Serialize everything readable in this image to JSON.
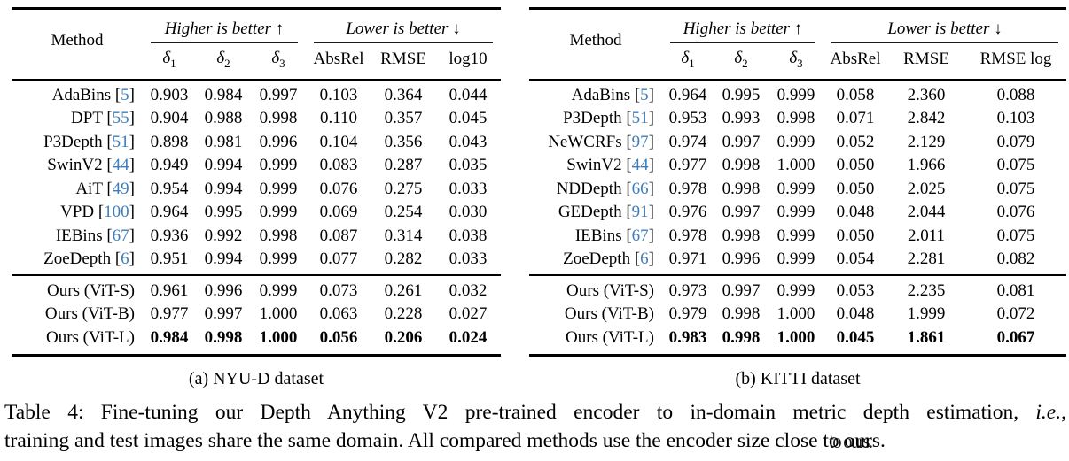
{
  "colors": {
    "cite_blue": "#3c7dbe",
    "text": "#000000",
    "rule": "#000000",
    "background": "#ffffff"
  },
  "tables": [
    {
      "id": "nyud",
      "subcaption": "(a) NYU-D dataset",
      "method_header": "Method",
      "groups": [
        {
          "label": "Higher is better",
          "arrow": "↑"
        },
        {
          "label": "Lower is better",
          "arrow": "↓"
        }
      ],
      "columns": [
        {
          "base": "δ",
          "sub": "1",
          "italic": true
        },
        {
          "base": "δ",
          "sub": "2",
          "italic": true
        },
        {
          "base": "δ",
          "sub": "3",
          "italic": true
        },
        {
          "base": "AbsRel"
        },
        {
          "base": "RMSE"
        },
        {
          "base": "log10"
        }
      ],
      "rows": [
        {
          "method": "AdaBins",
          "cite": "5",
          "values": [
            "0.903",
            "0.984",
            "0.997",
            "0.103",
            "0.364",
            "0.044"
          ]
        },
        {
          "method": "DPT",
          "cite": "55",
          "values": [
            "0.904",
            "0.988",
            "0.998",
            "0.110",
            "0.357",
            "0.045"
          ]
        },
        {
          "method": "P3Depth",
          "cite": "51",
          "values": [
            "0.898",
            "0.981",
            "0.996",
            "0.104",
            "0.356",
            "0.043"
          ]
        },
        {
          "method": "SwinV2",
          "cite": "44",
          "values": [
            "0.949",
            "0.994",
            "0.999",
            "0.083",
            "0.287",
            "0.035"
          ]
        },
        {
          "method": "AiT",
          "cite": "49",
          "values": [
            "0.954",
            "0.994",
            "0.999",
            "0.076",
            "0.275",
            "0.033"
          ]
        },
        {
          "method": "VPD",
          "cite": "100",
          "values": [
            "0.964",
            "0.995",
            "0.999",
            "0.069",
            "0.254",
            "0.030"
          ]
        },
        {
          "method": "IEBins",
          "cite": "67",
          "values": [
            "0.936",
            "0.992",
            "0.998",
            "0.087",
            "0.314",
            "0.038"
          ]
        },
        {
          "method": "ZoeDepth",
          "cite": "6",
          "values": [
            "0.951",
            "0.994",
            "0.999",
            "0.077",
            "0.282",
            "0.033"
          ]
        }
      ],
      "ours_rows": [
        {
          "method": "Ours (ViT-S)",
          "values": [
            "0.961",
            "0.996",
            "0.999",
            "0.073",
            "0.261",
            "0.032"
          ]
        },
        {
          "method": "Ours (ViT-B)",
          "values": [
            "0.977",
            "0.997",
            "1.000",
            "0.063",
            "0.228",
            "0.027"
          ]
        },
        {
          "method": "Ours (ViT-L)",
          "values": [
            "0.984",
            "0.998",
            "1.000",
            "0.056",
            "0.206",
            "0.024"
          ],
          "bold": true
        }
      ]
    },
    {
      "id": "kitti",
      "subcaption": "(b) KITTI dataset",
      "method_header": "Method",
      "groups": [
        {
          "label": "Higher is better",
          "arrow": "↑"
        },
        {
          "label": "Lower is better",
          "arrow": "↓"
        }
      ],
      "columns": [
        {
          "base": "δ",
          "sub": "1",
          "italic": true
        },
        {
          "base": "δ",
          "sub": "2",
          "italic": true
        },
        {
          "base": "δ",
          "sub": "3",
          "italic": true
        },
        {
          "base": "AbsRel"
        },
        {
          "base": "RMSE"
        },
        {
          "base": "RMSE log"
        }
      ],
      "rows": [
        {
          "method": "AdaBins",
          "cite": "5",
          "values": [
            "0.964",
            "0.995",
            "0.999",
            "0.058",
            "2.360",
            "0.088"
          ]
        },
        {
          "method": "P3Depth",
          "cite": "51",
          "values": [
            "0.953",
            "0.993",
            "0.998",
            "0.071",
            "2.842",
            "0.103"
          ]
        },
        {
          "method": "NeWCRFs",
          "cite": "97",
          "values": [
            "0.974",
            "0.997",
            "0.999",
            "0.052",
            "2.129",
            "0.079"
          ]
        },
        {
          "method": "SwinV2",
          "cite": "44",
          "values": [
            "0.977",
            "0.998",
            "1.000",
            "0.050",
            "1.966",
            "0.075"
          ]
        },
        {
          "method": "NDDepth",
          "cite": "66",
          "values": [
            "0.978",
            "0.998",
            "0.999",
            "0.050",
            "2.025",
            "0.075"
          ]
        },
        {
          "method": "GEDepth",
          "cite": "91",
          "values": [
            "0.976",
            "0.997",
            "0.999",
            "0.048",
            "2.044",
            "0.076"
          ]
        },
        {
          "method": "IEBins",
          "cite": "67",
          "values": [
            "0.978",
            "0.998",
            "0.999",
            "0.050",
            "2.011",
            "0.075"
          ]
        },
        {
          "method": "ZoeDepth",
          "cite": "6",
          "values": [
            "0.971",
            "0.996",
            "0.999",
            "0.054",
            "2.281",
            "0.082"
          ]
        }
      ],
      "ours_rows": [
        {
          "method": "Ours (ViT-S)",
          "values": [
            "0.973",
            "0.997",
            "0.999",
            "0.053",
            "2.235",
            "0.081"
          ]
        },
        {
          "method": "Ours (ViT-B)",
          "values": [
            "0.979",
            "0.998",
            "1.000",
            "0.048",
            "1.999",
            "0.072"
          ]
        },
        {
          "method": "Ours (ViT-L)",
          "values": [
            "0.983",
            "0.998",
            "1.000",
            "0.045",
            "1.861",
            "0.067"
          ],
          "bold": true
        }
      ]
    }
  ],
  "caption": {
    "part1": "Table 4: Fine-tuning our Depth Anything V2 pre-trained encoder to in-domain metric depth estimation, ",
    "ie": "i.e.",
    "part1_end": ",",
    "part2": "training and test images share the same domain. All compared methods use the encoder size close ",
    "garbled": "to ours."
  }
}
